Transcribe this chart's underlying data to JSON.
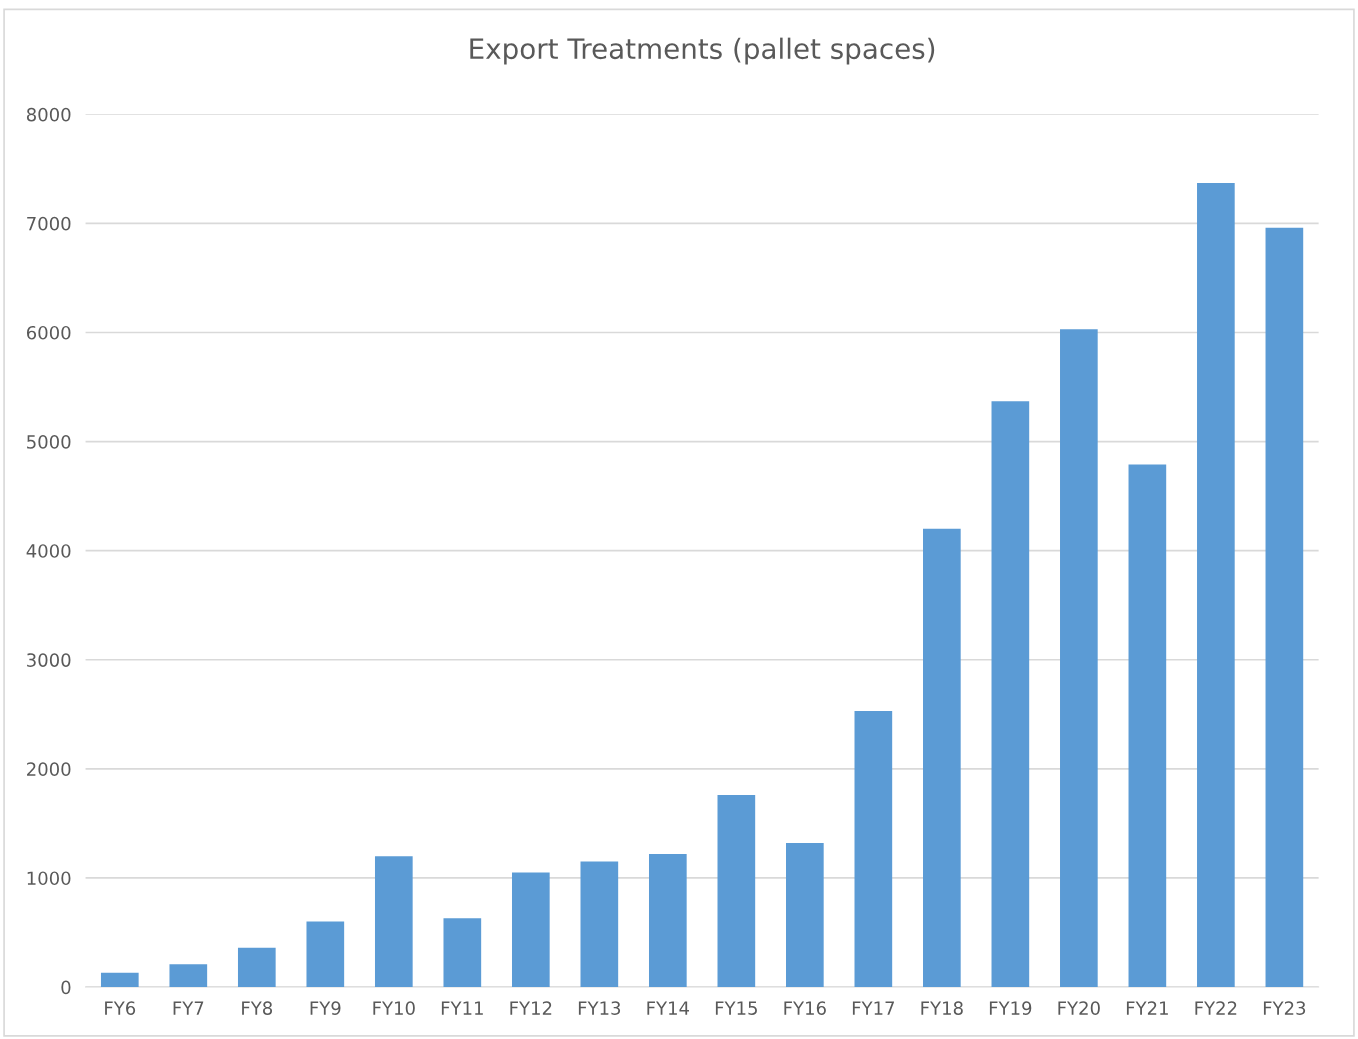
{
  "chart_data": {
    "type": "bar",
    "title": "Export Treatments (pallet spaces)",
    "categories": [
      "FY6",
      "FY7",
      "FY8",
      "FY9",
      "FY10",
      "FY11",
      "FY12",
      "FY13",
      "FY14",
      "FY15",
      "FY16",
      "FY17",
      "FY18",
      "FY19",
      "FY20",
      "FY21",
      "FY22",
      "FY23"
    ],
    "values": [
      130,
      210,
      360,
      600,
      1200,
      630,
      1050,
      1150,
      1220,
      1760,
      1320,
      2530,
      4200,
      5370,
      6030,
      4790,
      7370,
      6960
    ],
    "color": "#5b9bd5",
    "ylim": [
      0,
      8000
    ],
    "yticks": [
      0,
      1000,
      2000,
      3000,
      4000,
      5000,
      6000,
      7000,
      8000
    ],
    "grid": "y",
    "legend": false
  }
}
